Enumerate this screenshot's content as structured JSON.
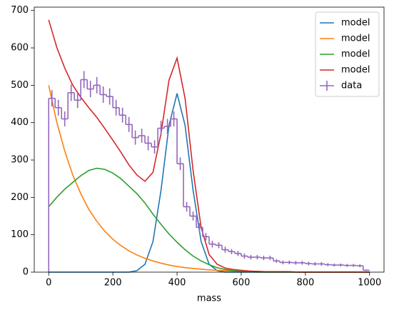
{
  "chart_data": {
    "type": "line",
    "xlabel": "mass",
    "x": [
      0,
      25,
      50,
      75,
      100,
      125,
      150,
      175,
      200,
      225,
      250,
      275,
      300,
      325,
      350,
      375,
      400,
      425,
      450,
      475,
      500,
      525,
      550,
      575,
      600,
      625,
      650,
      675,
      700,
      725,
      750,
      775,
      800,
      825,
      850,
      875,
      900,
      925,
      950,
      975,
      1000
    ],
    "series": [
      {
        "name": "model",
        "color": "#1f77b4",
        "values": [
          0,
          0,
          0,
          0,
          0,
          0,
          0,
          0,
          0,
          0,
          0,
          4,
          21,
          82,
          219,
          393,
          478,
          393,
          219,
          82,
          21,
          4,
          0,
          0,
          0,
          0,
          0,
          0,
          0,
          0,
          0,
          0,
          0,
          0,
          0,
          0,
          0,
          0,
          0,
          0,
          0
        ]
      },
      {
        "name": "model",
        "color": "#ff7f0e",
        "values": [
          500,
          402,
          324,
          260,
          210,
          168,
          136,
          109,
          88,
          71,
          57,
          46,
          37,
          30,
          24,
          19,
          15,
          12,
          10,
          8,
          6,
          5,
          4,
          3,
          3,
          2,
          2,
          1,
          1,
          1,
          1,
          0,
          0,
          0,
          0,
          0,
          0,
          0,
          0,
          0,
          0
        ]
      },
      {
        "name": "model",
        "color": "#2ca02c",
        "values": [
          175,
          200,
          222,
          240,
          258,
          272,
          278,
          275,
          265,
          250,
          230,
          210,
          185,
          155,
          128,
          102,
          80,
          60,
          43,
          30,
          20,
          12,
          7,
          4,
          2,
          1,
          0,
          0,
          0,
          0,
          0,
          0,
          0,
          0,
          0,
          0,
          0,
          0,
          0,
          0,
          0
        ]
      },
      {
        "name": "model",
        "color": "#d62728",
        "values": [
          675,
          602,
          546,
          500,
          468,
          440,
          414,
          384,
          353,
          321,
          287,
          260,
          243,
          267,
          371,
          514,
          573,
          465,
          272,
          120,
          47,
          21,
          11,
          7,
          5,
          3,
          2,
          1,
          1,
          1,
          1,
          0,
          0,
          0,
          0,
          0,
          0,
          0,
          0,
          0,
          0
        ]
      }
    ],
    "histogram": {
      "name": "data",
      "color": "#9467bd",
      "bins": [
        0,
        20,
        40,
        60,
        80,
        100,
        120,
        140,
        160,
        180,
        200,
        220,
        240,
        260,
        280,
        300,
        320,
        340,
        360,
        380,
        400,
        420,
        440,
        460,
        480,
        500,
        520,
        540,
        560,
        580,
        600,
        620,
        640,
        660,
        680,
        700,
        720,
        740,
        760,
        780,
        800,
        820,
        840,
        860,
        880,
        900,
        920,
        940,
        960,
        980,
        1000
      ],
      "values": [
        465,
        440,
        410,
        480,
        460,
        515,
        490,
        500,
        475,
        470,
        440,
        420,
        395,
        360,
        365,
        345,
        335,
        385,
        390,
        410,
        290,
        175,
        150,
        120,
        95,
        75,
        72,
        60,
        55,
        50,
        43,
        40,
        40,
        38,
        38,
        30,
        26,
        26,
        25,
        25,
        23,
        22,
        22,
        20,
        19,
        19,
        18,
        18,
        17,
        5
      ],
      "errors": [
        22,
        21,
        20,
        22,
        21,
        23,
        22,
        22,
        22,
        22,
        21,
        20,
        20,
        19,
        19,
        19,
        18,
        20,
        20,
        20,
        17,
        13,
        12,
        11,
        10,
        9,
        8,
        8,
        7,
        7,
        7,
        6,
        6,
        6,
        6,
        5,
        5,
        5,
        5,
        5,
        5,
        5,
        5,
        4,
        4,
        4,
        4,
        4,
        4,
        2
      ]
    },
    "xlim": [
      -45,
      1045
    ],
    "xticks": [
      0,
      200,
      400,
      600,
      800,
      1000
    ],
    "ylim": [
      0,
      709
    ],
    "yticks": [
      0,
      100,
      200,
      300,
      400,
      500,
      600,
      700
    ],
    "legend": "upper right"
  }
}
